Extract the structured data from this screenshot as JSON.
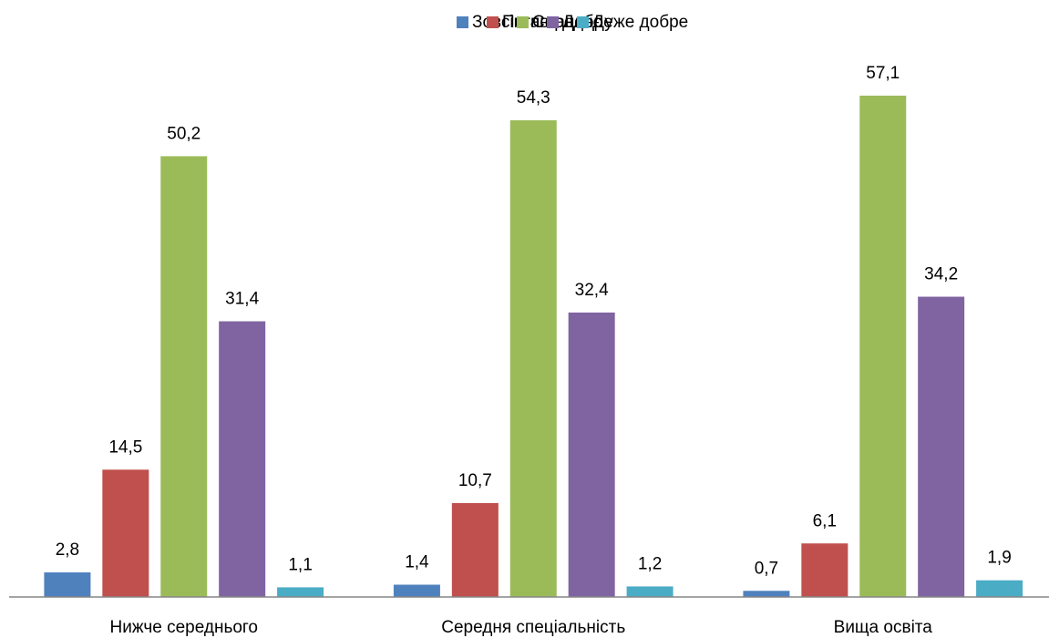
{
  "chart_data": {
    "type": "bar",
    "categories": [
      "Нижче середнього",
      "Середня спеціальність",
      "Вища освіта"
    ],
    "series": [
      {
        "name": "Зовсім погане",
        "color": "#4f81bd",
        "values": [
          2.8,
          1.4,
          0.7
        ],
        "value_labels": [
          "2,8",
          "1,4",
          "0,7"
        ]
      },
      {
        "name": "Погане",
        "color": "#c0504d",
        "values": [
          14.5,
          10.7,
          6.1
        ],
        "value_labels": [
          "14,5",
          "10,7",
          "6,1"
        ]
      },
      {
        "name": "Середнє",
        "color": "#9bbb59",
        "values": [
          50.2,
          54.3,
          57.1
        ],
        "value_labels": [
          "50,2",
          "54,3",
          "57,1"
        ]
      },
      {
        "name": "Добре",
        "color": "#8064a2",
        "values": [
          31.4,
          32.4,
          34.2
        ],
        "value_labels": [
          "31,4",
          "32,4",
          "34,2"
        ]
      },
      {
        "name": "Дуже добре",
        "color": "#4bacc6",
        "values": [
          1.1,
          1.2,
          1.9
        ],
        "value_labels": [
          "1,1",
          "1,2",
          "1,9"
        ]
      }
    ],
    "ylim": [
      0,
      60
    ],
    "legend": "top"
  }
}
